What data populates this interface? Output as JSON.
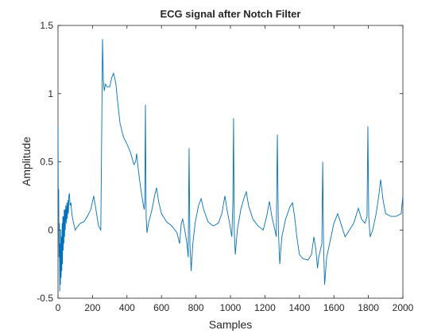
{
  "chart_data": {
    "type": "line",
    "title": "ECG signal after Notch Filter",
    "xlabel": "Samples",
    "ylabel": "Amplitude",
    "color": "#0072bd",
    "x": [
      0,
      2,
      4,
      6,
      8,
      10,
      12,
      14,
      16,
      18,
      20,
      22,
      24,
      26,
      28,
      30,
      32,
      34,
      36,
      38,
      40,
      42,
      45,
      48,
      51,
      54,
      57,
      60,
      63,
      66,
      70,
      75,
      80,
      90,
      100,
      110,
      130,
      150,
      170,
      190,
      207,
      220,
      235,
      248,
      252,
      258,
      263,
      268,
      275,
      285,
      300,
      312,
      322,
      335,
      345,
      360,
      380,
      400,
      420,
      440,
      450,
      456,
      465,
      478,
      490,
      500,
      503,
      507,
      511,
      516,
      525,
      545,
      560,
      571,
      585,
      600,
      630,
      660,
      690,
      705,
      715,
      723,
      735,
      748,
      755,
      760,
      765,
      772,
      782,
      795,
      815,
      830,
      845,
      870,
      900,
      930,
      950,
      968,
      980,
      995,
      1008,
      1014,
      1018,
      1022,
      1028,
      1040,
      1060,
      1080,
      1092,
      1105,
      1130,
      1160,
      1190,
      1210,
      1226,
      1240,
      1258,
      1266,
      1272,
      1278,
      1286,
      1298,
      1320,
      1345,
      1360,
      1372,
      1385,
      1400,
      1420,
      1450,
      1470,
      1484,
      1496,
      1505,
      1512,
      1530,
      1535,
      1540,
      1546,
      1558,
      1575,
      1600,
      1622,
      1640,
      1665,
      1690,
      1715,
      1742,
      1760,
      1780,
      1792,
      1797,
      1802,
      1810,
      1825,
      1845,
      1860,
      1871,
      1885,
      1900,
      1930,
      1960,
      1990,
      2000
    ],
    "values": [
      0.77,
      0.1,
      0.3,
      -0.2,
      0.05,
      -0.45,
      -0.1,
      -0.4,
      0.0,
      -0.35,
      -0.05,
      -0.3,
      0.05,
      -0.25,
      0.1,
      -0.15,
      0.1,
      -0.1,
      0.15,
      -0.05,
      0.15,
      0.0,
      0.18,
      0.05,
      0.2,
      0.08,
      0.22,
      0.12,
      0.25,
      0.27,
      0.18,
      0.2,
      0.12,
      0.05,
      0.0,
      0.02,
      0.05,
      0.06,
      0.1,
      0.15,
      0.25,
      0.15,
      0.03,
      0.0,
      0.5,
      1.4,
      1.1,
      1.02,
      1.07,
      1.05,
      1.05,
      1.12,
      1.15,
      1.08,
      0.95,
      0.78,
      0.68,
      0.63,
      0.57,
      0.48,
      0.5,
      0.56,
      0.45,
      0.32,
      0.22,
      0.15,
      0.2,
      0.92,
      0.1,
      -0.02,
      0.05,
      0.15,
      0.25,
      0.31,
      0.2,
      0.12,
      0.06,
      0.03,
      -0.02,
      -0.1,
      0.05,
      0.08,
      0.0,
      -0.1,
      -0.2,
      0.6,
      -0.1,
      -0.3,
      -0.1,
      0.05,
      0.18,
      0.23,
      0.15,
      0.06,
      0.03,
      0.05,
      0.12,
      0.25,
      0.15,
      0.05,
      -0.05,
      0.2,
      0.82,
      0.0,
      -0.18,
      0.0,
      0.15,
      0.24,
      0.28,
      0.18,
      0.08,
      0.03,
      0.0,
      0.1,
      0.21,
      0.1,
      0.0,
      -0.05,
      0.7,
      0.0,
      -0.25,
      -0.05,
      0.08,
      0.17,
      0.2,
      0.1,
      -0.05,
      -0.18,
      -0.21,
      -0.22,
      -0.18,
      -0.05,
      -0.15,
      -0.28,
      -0.2,
      -0.1,
      0.5,
      -0.1,
      -0.4,
      -0.2,
      -0.1,
      0.05,
      0.12,
      0.05,
      -0.05,
      0.0,
      0.05,
      0.16,
      0.08,
      0.05,
      0.1,
      0.76,
      0.1,
      -0.05,
      0.0,
      0.12,
      0.25,
      0.37,
      0.22,
      0.12,
      0.1,
      0.1,
      0.12,
      0.25
    ],
    "xlim": [
      0,
      2000
    ],
    "xticks": [
      0,
      200,
      400,
      600,
      800,
      1000,
      1200,
      1400,
      1600,
      1800,
      2000
    ],
    "ylim": [
      -0.5,
      1.5
    ],
    "yticks": [
      -0.5,
      0,
      0.5,
      1,
      1.5
    ]
  }
}
